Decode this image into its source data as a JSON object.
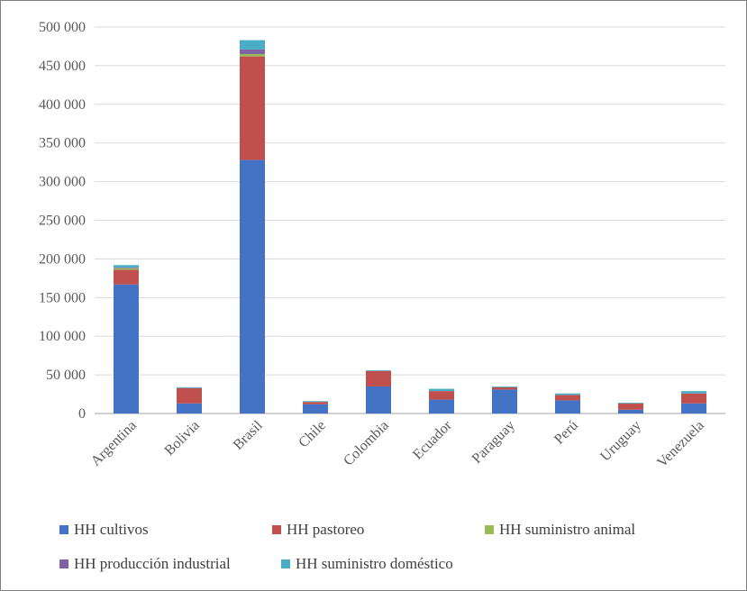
{
  "chart_data": {
    "type": "bar",
    "stacked": true,
    "categories": [
      "Argentina",
      "Bolivia",
      "Brasil",
      "Chile",
      "Colombia",
      "Ecuador",
      "Paraguay",
      "Perú",
      "Uruguay",
      "Venezuela"
    ],
    "series": [
      {
        "name": "HH cultivos",
        "color": "#4472C4",
        "values": [
          167000,
          13000,
          328000,
          12000,
          35000,
          18000,
          31000,
          17000,
          5000,
          13000
        ]
      },
      {
        "name": "HH pastoreo",
        "color": "#C0504D",
        "values": [
          19000,
          20000,
          134000,
          3000,
          20000,
          11000,
          3000,
          7000,
          8000,
          13000
        ]
      },
      {
        "name": "HH suministro animal",
        "color": "#9BBB59",
        "values": [
          2000,
          0,
          3000,
          0,
          0,
          0,
          0,
          0,
          0,
          0
        ]
      },
      {
        "name": "HH producción industrial",
        "color": "#8064A2",
        "values": [
          1000,
          0,
          6000,
          0,
          0,
          0,
          0,
          0,
          0,
          0
        ]
      },
      {
        "name": "HH suministro doméstico",
        "color": "#4BACC6",
        "values": [
          3000,
          1000,
          12000,
          1000,
          1000,
          3000,
          1000,
          2000,
          1000,
          3000
        ]
      }
    ],
    "ylim": [
      0,
      500000
    ],
    "yticks": [
      "0",
      "50 000",
      "100 000",
      "150 000",
      "200 000",
      "250 000",
      "300 000",
      "350 000",
      "400 000",
      "450 000",
      "500 000"
    ],
    "grid": true,
    "legend_position": "bottom"
  }
}
